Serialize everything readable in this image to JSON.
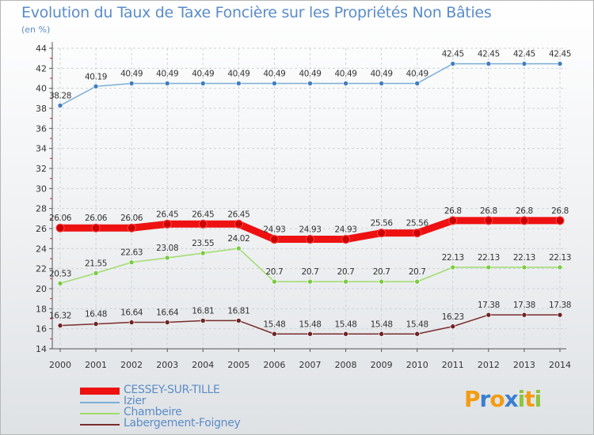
{
  "chart_data": {
    "type": "line",
    "title": "Evolution du Taux de Taxe Foncière sur les Propriétés Non Bâties",
    "ylabel": "(en %)",
    "xlabel": "",
    "ylim": [
      14,
      44
    ],
    "yticks": [
      14,
      16,
      18,
      20,
      22,
      24,
      26,
      28,
      30,
      32,
      34,
      36,
      38,
      40,
      42,
      44
    ],
    "categories": [
      "2000",
      "2001",
      "2002",
      "2003",
      "2004",
      "2005",
      "2006",
      "2007",
      "2008",
      "2009",
      "2010",
      "2011",
      "2012",
      "2013",
      "2014"
    ],
    "series": [
      {
        "name": "Izier",
        "color": "#7aaed6",
        "marker": "#3f7fc0",
        "values": [
          38.28,
          40.19,
          40.49,
          40.49,
          40.49,
          40.49,
          40.49,
          40.49,
          40.49,
          40.49,
          40.49,
          42.45,
          42.45,
          42.45,
          42.45
        ],
        "labels": [
          "38.28",
          "40.19",
          "40.49",
          "40.49",
          "40.49",
          "40.49",
          "40.49",
          "40.49",
          "40.49",
          "40.49",
          "40.49",
          "42.45",
          "42.45",
          "42.45",
          "42.45"
        ]
      },
      {
        "name": "CESSEY-SUR-TILLE",
        "color": "#ee1111",
        "marker": "#cc0000",
        "bold": true,
        "values": [
          26.06,
          26.06,
          26.06,
          26.45,
          26.45,
          26.45,
          24.93,
          24.93,
          24.93,
          25.56,
          25.56,
          26.8,
          26.8,
          26.8,
          26.8
        ],
        "labels": [
          "26.06",
          "26.06",
          "26.06",
          "26.45",
          "26.45",
          "26.45",
          "24.93",
          "24.93",
          "24.93",
          "25.56",
          "25.56",
          "26.8",
          "26.8",
          "26.8",
          "26.8"
        ]
      },
      {
        "name": "Chambeire",
        "color": "#9fdc6a",
        "marker": "#7ac943",
        "values": [
          20.53,
          21.55,
          22.63,
          23.08,
          23.55,
          24.02,
          20.7,
          20.7,
          20.7,
          20.7,
          20.7,
          22.13,
          22.13,
          22.13,
          22.13
        ],
        "labels": [
          "20.53",
          "21.55",
          "22.63",
          "23.08",
          "23.55",
          "24.02",
          "20.7",
          "20.7",
          "20.7",
          "20.7",
          "20.7",
          "22.13",
          "22.13",
          "22.13",
          "22.13"
        ]
      },
      {
        "name": "Labergement-Foigney",
        "color": "#7a2c2c",
        "marker": "#6e2323",
        "values": [
          16.32,
          16.48,
          16.64,
          16.64,
          16.81,
          16.81,
          15.48,
          15.48,
          15.48,
          15.48,
          15.48,
          16.23,
          17.38,
          17.38,
          17.38
        ],
        "labels": [
          "16.32",
          "16.48",
          "16.64",
          "16.64",
          "16.81",
          "16.81",
          "15.48",
          "15.48",
          "15.48",
          "15.48",
          "15.48",
          "16.23",
          "17.38",
          "17.38",
          "17.38"
        ]
      }
    ],
    "legend": [
      {
        "name": "CESSEY-SUR-TILLE",
        "color": "#ee1111",
        "bold": true
      },
      {
        "name": "Izier",
        "color": "#7aaed6"
      },
      {
        "name": "Chambeire",
        "color": "#9fdc6a"
      },
      {
        "name": "Labergement-Foigney",
        "color": "#7a2c2c"
      }
    ],
    "legend_position": "bottom-left"
  },
  "brand": {
    "letters": [
      "P",
      "r",
      "o",
      "x",
      "i",
      "t",
      "i"
    ],
    "colors": [
      "#f39c12",
      "#3a7fd0",
      "#f39c12",
      "#3a7fd0",
      "#8cc63f",
      "#f39c12",
      "#8cc63f"
    ]
  }
}
